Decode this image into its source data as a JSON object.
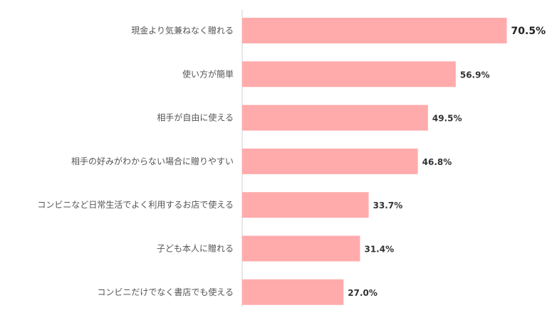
{
  "chart_data": {
    "type": "bar",
    "orientation": "horizontal",
    "categories": [
      "現金より気兼ねなく贈れる",
      "使い方が簡単",
      "相手が自由に使える",
      "相手の好みがわからない場合に贈りやすい",
      "コンビニなど日常生活でよく利用するお店で使える",
      "子ども本人に贈れる",
      "コンビニだけでなく書店でも使える"
    ],
    "values": [
      70.5,
      56.9,
      49.5,
      46.8,
      33.7,
      31.4,
      27.0
    ],
    "value_labels": [
      "70.5%",
      "56.9%",
      "49.5%",
      "46.8%",
      "33.7%",
      "31.4%",
      "27.0%"
    ],
    "title": "",
    "xlabel": "",
    "ylabel": "",
    "xlim": [
      0,
      100
    ],
    "grid": false,
    "legend": "none",
    "colors": {
      "bar": "#ffabac",
      "axis": "#d0d0d0"
    }
  }
}
